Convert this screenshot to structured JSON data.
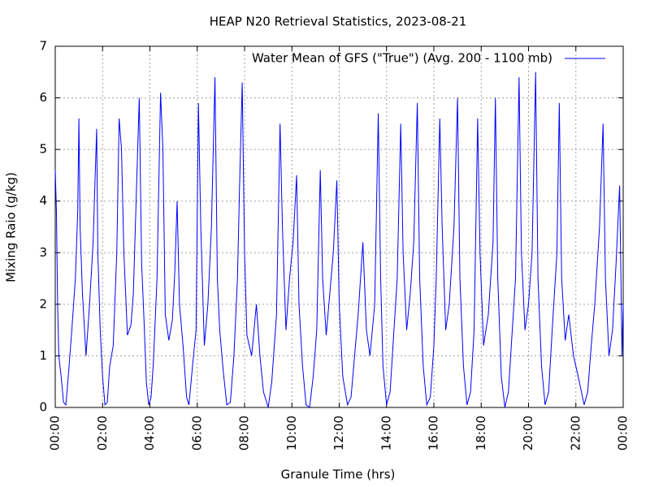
{
  "chart_data": {
    "type": "line",
    "title": "HEAP N20 Retrieval Statistics, 2023-08-21",
    "xlabel": "Granule Time (hrs)",
    "ylabel": "Mixing Raio (g/kg)",
    "xlim": [
      0,
      24
    ],
    "xticks": [
      {
        "value": 0,
        "label": "00:00"
      },
      {
        "value": 2,
        "label": "02:00"
      },
      {
        "value": 4,
        "label": "04:00"
      },
      {
        "value": 6,
        "label": "06:00"
      },
      {
        "value": 8,
        "label": "08:00"
      },
      {
        "value": 10,
        "label": "10:00"
      },
      {
        "value": 12,
        "label": "12:00"
      },
      {
        "value": 14,
        "label": "14:00"
      },
      {
        "value": 16,
        "label": "16:00"
      },
      {
        "value": 18,
        "label": "18:00"
      },
      {
        "value": 20,
        "label": "20:00"
      },
      {
        "value": 22,
        "label": "22:00"
      },
      {
        "value": 24,
        "label": "00:00"
      }
    ],
    "ylim": [
      0,
      7
    ],
    "yticks": [
      0,
      1,
      2,
      3,
      4,
      5,
      6,
      7
    ],
    "grid": true,
    "legend": "top-right",
    "x": [
      0,
      0.05,
      0.1,
      0.15,
      0.25,
      0.35,
      0.45,
      0.55,
      0.7,
      0.85,
      0.95,
      1.0,
      1.05,
      1.15,
      1.3,
      1.45,
      1.6,
      1.75,
      1.8,
      1.9,
      2.0,
      2.1,
      2.2,
      2.3,
      2.45,
      2.6,
      2.7,
      2.8,
      2.9,
      3.05,
      3.2,
      3.3,
      3.45,
      3.55,
      3.65,
      3.75,
      3.85,
      3.95,
      4.05,
      4.15,
      4.3,
      4.45,
      4.55,
      4.65,
      4.8,
      4.95,
      5.05,
      5.15,
      5.25,
      5.4,
      5.55,
      5.65,
      5.8,
      5.95,
      6.05,
      6.15,
      6.3,
      6.45,
      6.6,
      6.75,
      6.85,
      6.95,
      7.1,
      7.25,
      7.4,
      7.55,
      7.7,
      7.8,
      7.9,
      8.0,
      8.1,
      8.3,
      8.5,
      8.65,
      8.8,
      9.0,
      9.15,
      9.35,
      9.5,
      9.6,
      9.75,
      9.9,
      10.05,
      10.2,
      10.3,
      10.45,
      10.6,
      10.75,
      10.9,
      11.05,
      11.2,
      11.3,
      11.45,
      11.6,
      11.75,
      11.9,
      12.0,
      12.15,
      12.35,
      12.5,
      12.65,
      12.8,
      13.0,
      13.15,
      13.3,
      13.5,
      13.65,
      13.75,
      13.85,
      14.0,
      14.15,
      14.3,
      14.45,
      14.6,
      14.7,
      14.85,
      15.0,
      15.15,
      15.3,
      15.4,
      15.55,
      15.7,
      15.85,
      16.0,
      16.1,
      16.25,
      16.35,
      16.5,
      16.65,
      16.85,
      17.0,
      17.1,
      17.25,
      17.4,
      17.55,
      17.7,
      17.85,
      17.95,
      18.1,
      18.3,
      18.5,
      18.6,
      18.7,
      18.85,
      19.0,
      19.15,
      19.3,
      19.45,
      19.6,
      19.7,
      19.85,
      20.0,
      20.15,
      20.3,
      20.4,
      20.55,
      20.7,
      20.85,
      21.0,
      21.2,
      21.3,
      21.4,
      21.55,
      21.7,
      21.9,
      22.1,
      22.35,
      22.5,
      22.65,
      22.8,
      23.0,
      23.15,
      23.25,
      23.4,
      23.55,
      23.7,
      23.85,
      23.95,
      24.0
    ],
    "series": [
      {
        "name": "Water Mean of GFS (\"True\") (Avg. 200 - 1100 mb)",
        "color": "#0000ff",
        "values": [
          4.6,
          3.8,
          2.0,
          1.0,
          0.6,
          0.1,
          0.05,
          0.6,
          1.5,
          2.5,
          3.8,
          5.6,
          3.5,
          2.2,
          1.0,
          2.0,
          3.2,
          5.4,
          3.0,
          1.5,
          0.6,
          0.05,
          0.1,
          0.8,
          1.2,
          3.0,
          5.6,
          5.0,
          3.0,
          1.4,
          1.6,
          2.2,
          4.5,
          6.0,
          2.8,
          1.7,
          0.5,
          0.05,
          0.2,
          0.9,
          2.5,
          6.1,
          5.0,
          1.8,
          1.3,
          1.7,
          2.6,
          4.0,
          2.0,
          1.2,
          0.2,
          0.05,
          0.8,
          1.5,
          5.9,
          3.5,
          1.2,
          2.0,
          3.5,
          6.4,
          2.5,
          1.5,
          0.7,
          0.05,
          0.1,
          1.0,
          2.5,
          4.5,
          6.3,
          3.0,
          1.4,
          1.0,
          2.0,
          1.0,
          0.3,
          0.0,
          0.5,
          1.8,
          5.5,
          3.5,
          1.5,
          2.5,
          3.2,
          4.5,
          2.0,
          0.8,
          0.05,
          0.0,
          0.6,
          1.5,
          4.6,
          2.5,
          1.4,
          2.2,
          3.0,
          4.4,
          2.0,
          0.6,
          0.05,
          0.2,
          1.0,
          1.8,
          3.2,
          1.5,
          1.0,
          2.0,
          5.7,
          2.5,
          0.8,
          0.05,
          0.3,
          1.4,
          2.5,
          5.5,
          3.0,
          1.5,
          2.2,
          3.2,
          5.9,
          2.5,
          0.8,
          0.05,
          0.2,
          1.2,
          2.5,
          5.6,
          3.5,
          1.5,
          2.0,
          3.5,
          6.0,
          2.5,
          0.8,
          0.05,
          0.3,
          1.5,
          5.6,
          3.0,
          1.2,
          1.8,
          3.2,
          6.0,
          2.5,
          0.6,
          0.0,
          0.3,
          1.4,
          2.5,
          6.4,
          3.0,
          1.5,
          2.0,
          3.0,
          6.5,
          2.5,
          0.8,
          0.05,
          0.3,
          1.5,
          3.0,
          5.9,
          2.5,
          1.3,
          1.8,
          1.0,
          0.6,
          0.05,
          0.3,
          1.2,
          2.0,
          3.5,
          5.5,
          2.5,
          1.0,
          1.5,
          2.8,
          4.3,
          1.0,
          2.0
        ]
      }
    ]
  }
}
